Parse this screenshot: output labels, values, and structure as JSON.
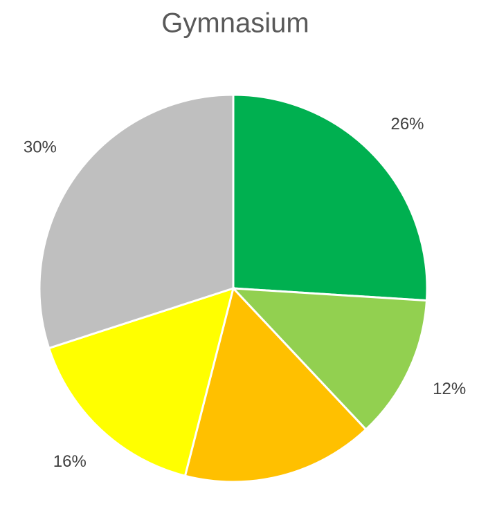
{
  "chart_data": {
    "type": "pie",
    "title": "Gymnasium",
    "values": [
      26,
      12,
      16,
      16,
      30
    ],
    "value_labels": [
      "26%",
      "12%",
      "16%",
      "16%",
      "30%"
    ],
    "colors": [
      "#00b050",
      "#92d050",
      "#ffc000",
      "#ffff00",
      "#bfbfbf"
    ]
  }
}
